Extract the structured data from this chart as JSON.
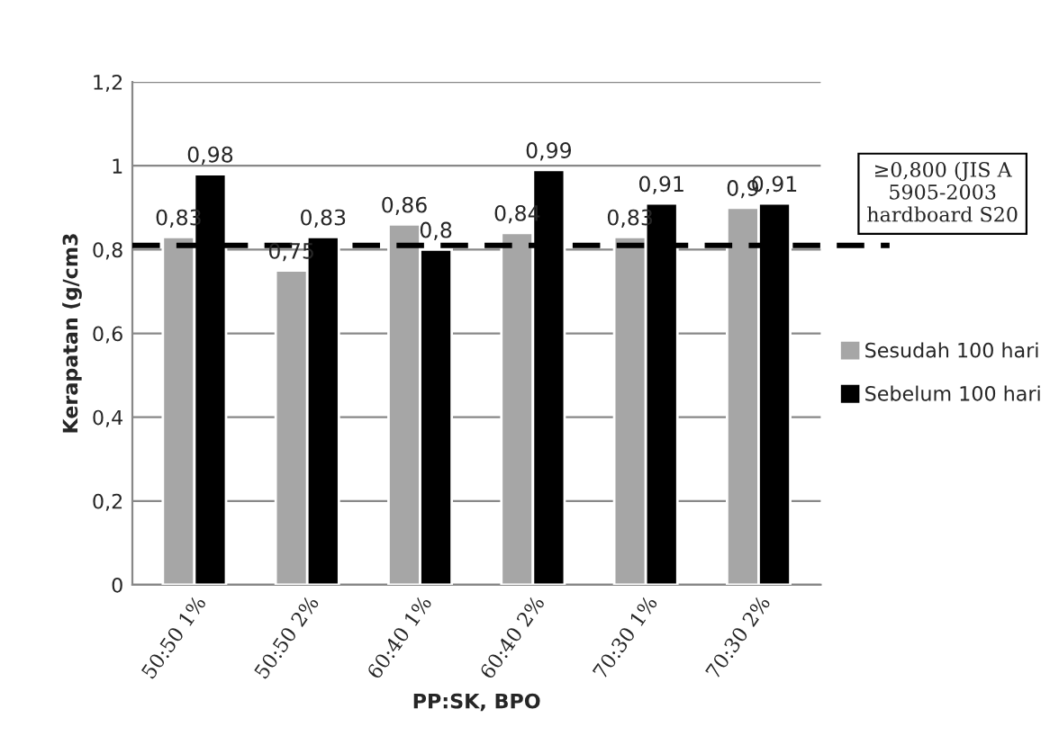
{
  "chart_data": {
    "type": "bar",
    "xlabel": "PP:SK, BPO",
    "ylabel": "Kerapatan (g/cm3",
    "categories": [
      "50:50 1%",
      "50:50 2%",
      "60:40 1%",
      "60:40 2%",
      "70:30 1%",
      "70:30 2%"
    ],
    "series": [
      {
        "name": "Sesudah 100 hari",
        "color": "#a6a6a6",
        "values": [
          0.83,
          0.75,
          0.86,
          0.84,
          0.83,
          0.9
        ],
        "value_labels": [
          "0,83",
          "0,75",
          "0,86",
          "0,84",
          "0,83",
          "0,9"
        ]
      },
      {
        "name": "Sebelum 100 hari",
        "color": "#000000",
        "values": [
          0.98,
          0.83,
          0.8,
          0.99,
          0.91,
          0.91
        ],
        "value_labels": [
          "0,98",
          "0,83",
          "0,8",
          "0,99",
          "0,91",
          "0,91"
        ]
      }
    ],
    "ylim": [
      0,
      1.2
    ],
    "yticks": [
      0,
      {
        "value": 0.2,
        "label": "0,2"
      },
      {
        "value": 0.4,
        "label": "0,4"
      },
      {
        "value": 0.6,
        "label": "0,6"
      },
      {
        "value": 0.8,
        "label": "0,8"
      },
      1,
      {
        "value": 1.2,
        "label": "1,2"
      }
    ],
    "ref_lines": [
      {
        "axis": "y",
        "value": 0.81,
        "label": "≥0,800 (JIS A 5905-2003 hardboard S20",
        "color": "#000000",
        "line_style": "dashed"
      }
    ],
    "grid": "y",
    "legend": "right"
  }
}
